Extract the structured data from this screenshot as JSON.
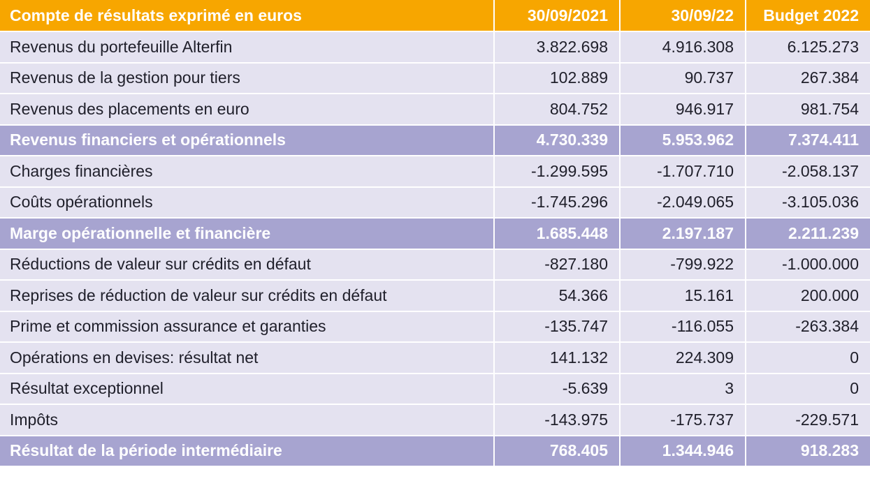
{
  "table": {
    "headers": [
      "Compte de résultats exprimé en euros",
      "30/09/2021",
      "30/09/22",
      "Budget 2022"
    ],
    "rows": [
      {
        "label": "Revenus du portefeuille Alterfin",
        "values": [
          "3.822.698",
          "4.916.308",
          "6.125.273"
        ],
        "subtotal": false
      },
      {
        "label": "Revenus de la gestion pour tiers",
        "values": [
          "102.889",
          "90.737",
          "267.384"
        ],
        "subtotal": false
      },
      {
        "label": "Revenus des placements en euro",
        "values": [
          "804.752",
          "946.917",
          "981.754"
        ],
        "subtotal": false
      },
      {
        "label": "Revenus financiers et opérationnels",
        "values": [
          "4.730.339",
          "5.953.962",
          "7.374.411"
        ],
        "subtotal": true
      },
      {
        "label": "Charges financières",
        "values": [
          "-1.299.595",
          "-1.707.710",
          "-2.058.137"
        ],
        "subtotal": false
      },
      {
        "label": "Coûts opérationnels",
        "values": [
          "-1.745.296",
          "-2.049.065",
          "-3.105.036"
        ],
        "subtotal": false
      },
      {
        "label": "Marge opérationnelle et financière",
        "values": [
          "1.685.448",
          "2.197.187",
          "2.211.239"
        ],
        "subtotal": true
      },
      {
        "label": "Réductions de valeur sur crédits en défaut",
        "values": [
          "-827.180",
          "-799.922",
          "-1.000.000"
        ],
        "subtotal": false
      },
      {
        "label": "Reprises de réduction de valeur sur crédits en défaut",
        "values": [
          "54.366",
          "15.161",
          "200.000"
        ],
        "subtotal": false
      },
      {
        "label": "Prime et commission assurance et garanties",
        "values": [
          "-135.747",
          "-116.055",
          "-263.384"
        ],
        "subtotal": false
      },
      {
        "label": "Opérations en devises: résultat net",
        "values": [
          "141.132",
          "224.309",
          "0"
        ],
        "subtotal": false
      },
      {
        "label": "Résultat exceptionnel",
        "values": [
          "-5.639",
          "3",
          "0"
        ],
        "subtotal": false
      },
      {
        "label": "Impôts",
        "values": [
          "-143.975",
          "-175.737",
          "-229.571"
        ],
        "subtotal": false
      },
      {
        "label": "Résultat de la période intermédiaire",
        "values": [
          "768.405",
          "1.344.946",
          "918.283"
        ],
        "subtotal": true
      }
    ]
  },
  "colors": {
    "header_bg": "#f7a600",
    "row_bg": "#e4e2f0",
    "subtotal_bg": "#a7a4d0",
    "text": "#1f1f2a"
  }
}
